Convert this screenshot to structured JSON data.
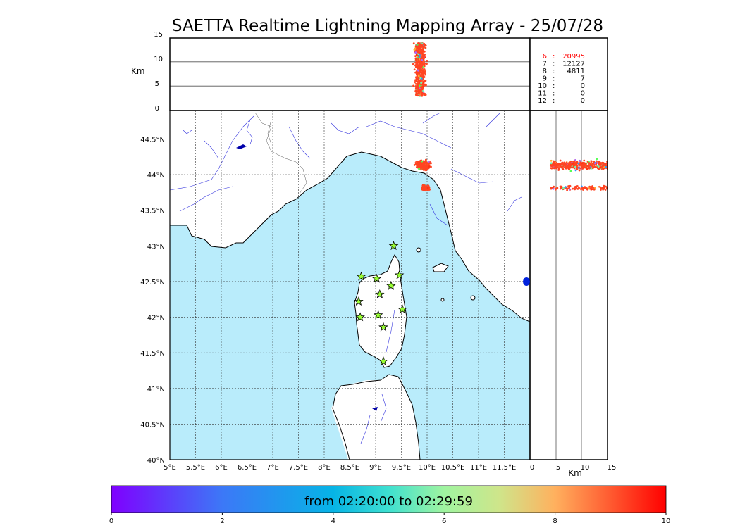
{
  "title": "SAETTA Realtime Lightning Mapping Array - 25/07/28",
  "top_panel": {
    "ylabel": "Km",
    "yticks": [
      "15",
      "10",
      "5",
      "0"
    ]
  },
  "side_panel": {
    "xlabel": "Km",
    "xticks": [
      "0",
      "5",
      "10",
      "15"
    ]
  },
  "map": {
    "lat_ticks": [
      "44.5°N",
      "44°N",
      "43.5°N",
      "43°N",
      "42.5°N",
      "42°N",
      "41.5°N",
      "41°N",
      "40.5°N",
      "40°N"
    ],
    "lon_ticks": [
      "5°E",
      "5.5°E",
      "6°E",
      "6.5°E",
      "7°E",
      "7.5°E",
      "8°E",
      "8.5°E",
      "9°E",
      "9.5°E",
      "10°E",
      "10.5°E",
      "11°E",
      "11.5°E"
    ],
    "sea_color": "#b9ecfb",
    "stations": [
      {
        "lon": 9.35,
        "lat": 43.0
      },
      {
        "lon": 8.72,
        "lat": 42.57
      },
      {
        "lon": 9.02,
        "lat": 42.54
      },
      {
        "lon": 9.46,
        "lat": 42.59
      },
      {
        "lon": 9.3,
        "lat": 42.44
      },
      {
        "lon": 9.08,
        "lat": 42.32
      },
      {
        "lon": 8.67,
        "lat": 42.22
      },
      {
        "lon": 9.52,
        "lat": 42.11
      },
      {
        "lon": 9.05,
        "lat": 42.03
      },
      {
        "lon": 8.7,
        "lat": 42.0
      },
      {
        "lon": 9.15,
        "lat": 41.86
      },
      {
        "lon": 9.15,
        "lat": 41.38
      }
    ],
    "station_icon": "star-icon",
    "station_color": "#99ff33"
  },
  "counts": [
    {
      "label": "6",
      "value": "20995",
      "color": "#ff0000"
    },
    {
      "label": "7",
      "value": "12127",
      "color": "#000000"
    },
    {
      "label": "8",
      "value": "4811",
      "color": "#000000"
    },
    {
      "label": "9",
      "value": "7",
      "color": "#000000"
    },
    {
      "label": "10",
      "value": "0",
      "color": "#000000"
    },
    {
      "label": "11",
      "value": "0",
      "color": "#000000"
    },
    {
      "label": "12",
      "value": "0",
      "color": "#000000"
    }
  ],
  "lightning": {
    "center_lon": 9.92,
    "center_lat": 44.05,
    "alt_min_km": 3,
    "alt_max_km": 14,
    "dominant_color": "#ff4422"
  },
  "colorbar": {
    "label": "from 02:20:00 to 02:29:59",
    "ticks": [
      "0",
      "2",
      "4",
      "6",
      "8",
      "10"
    ],
    "range": [
      0,
      10
    ]
  }
}
